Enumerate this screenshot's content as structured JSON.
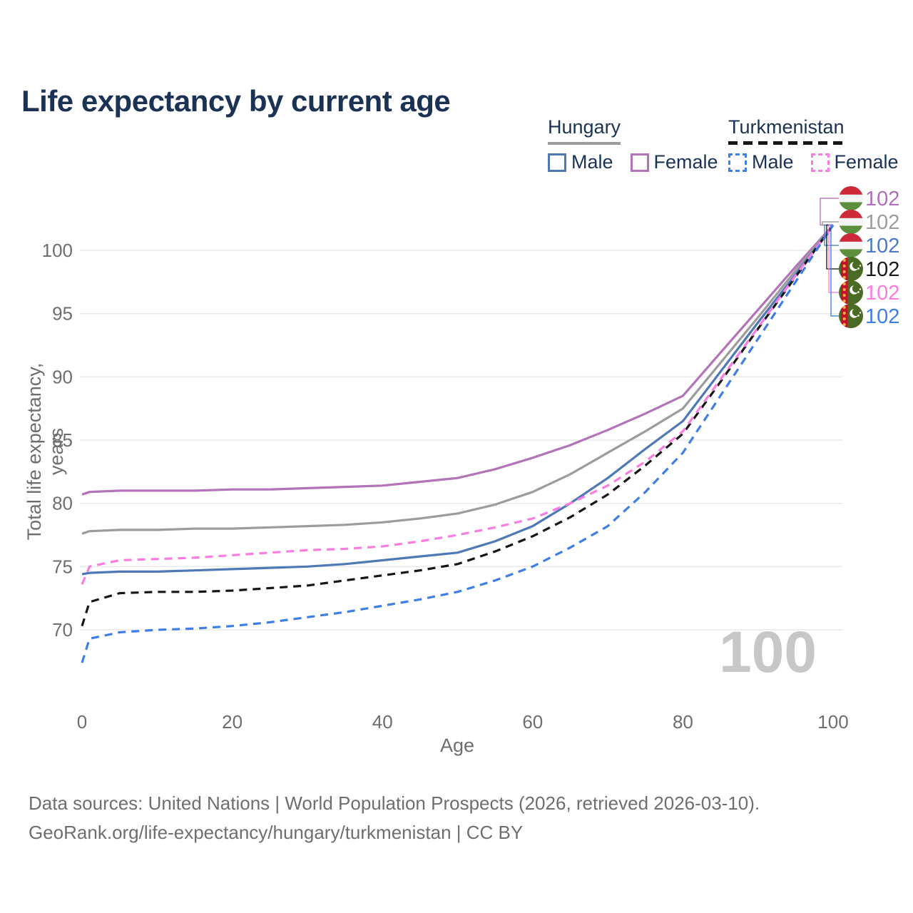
{
  "title": "Life expectancy by current age",
  "watermark": "100",
  "legend": {
    "hungary": {
      "label": "Hungary",
      "male": "Male",
      "female": "Female"
    },
    "turkmenistan": {
      "label": "Turkmenistan",
      "male": "Male",
      "female": "Female"
    }
  },
  "footer": {
    "line1": "Data sources: United Nations | World Population Prospects (2026, retrieved 2026-03-10).",
    "line2": "GeoRank.org/life-expectancy/hungary/turkmenistan | CC BY"
  },
  "colors": {
    "title_text": "#1b3254",
    "grid": "#e9e9e9",
    "tick_text": "#6e6e6e",
    "watermark": "#c7c7c7",
    "hungary_female": "#b273b8",
    "hungary_all": "#9c9c9c",
    "hungary_male": "#4e79b6",
    "turkmenistan_all": "#161616",
    "turkmenistan_female": "#fb7ce0",
    "turkmenistan_male": "#3e7ee8"
  },
  "chart_data": {
    "type": "line",
    "title": "Life expectancy by current age",
    "xlabel": "Age",
    "ylabel": "Total life expectancy, years",
    "xlim": [
      0,
      100
    ],
    "ylim": [
      70,
      100
    ],
    "x_ticks": [
      0,
      20,
      40,
      60,
      80,
      100
    ],
    "y_ticks": [
      70,
      75,
      80,
      85,
      90,
      95,
      100
    ],
    "grid": "horizontal",
    "legend_position": "top-right",
    "current_age_indicator": 100,
    "ages": [
      0,
      1,
      5,
      10,
      15,
      20,
      25,
      30,
      35,
      40,
      45,
      50,
      55,
      60,
      65,
      70,
      75,
      80,
      85,
      90,
      95,
      100
    ],
    "series": [
      {
        "id": "hungary-female",
        "name": "Hungary Female",
        "country": "Hungary",
        "sex": "Female",
        "style": "solid",
        "color": "#b273b8",
        "values": [
          80.7,
          80.9,
          81.0,
          81.0,
          81.0,
          81.1,
          81.1,
          81.2,
          81.3,
          81.4,
          81.7,
          82.0,
          82.7,
          83.6,
          84.6,
          85.8,
          87.1,
          88.5,
          91.9,
          95.3,
          98.7,
          102
        ]
      },
      {
        "id": "hungary-all",
        "name": "Hungary All",
        "country": "Hungary",
        "sex": "All",
        "style": "solid",
        "color": "#9c9c9c",
        "values": [
          77.6,
          77.8,
          77.9,
          77.9,
          78.0,
          78.0,
          78.1,
          78.2,
          78.3,
          78.5,
          78.8,
          79.2,
          79.9,
          80.9,
          82.3,
          84.0,
          85.7,
          87.5,
          91.1,
          94.7,
          98.4,
          102
        ]
      },
      {
        "id": "hungary-male",
        "name": "Hungary Male",
        "country": "Hungary",
        "sex": "Male",
        "style": "solid",
        "color": "#4e79b6",
        "values": [
          74.4,
          74.5,
          74.6,
          74.6,
          74.7,
          74.8,
          74.9,
          75.0,
          75.2,
          75.5,
          75.8,
          76.1,
          77.0,
          78.2,
          80.0,
          82.0,
          84.3,
          86.5,
          90.4,
          94.3,
          98.1,
          102
        ]
      },
      {
        "id": "turkmenistan-all",
        "name": "Turkmenistan All",
        "country": "Turkmenistan",
        "sex": "All",
        "style": "dashed",
        "color": "#161616",
        "values": [
          70.3,
          72.2,
          72.9,
          73.0,
          73.0,
          73.1,
          73.3,
          73.5,
          73.9,
          74.3,
          74.7,
          75.2,
          76.2,
          77.4,
          78.9,
          80.7,
          83.0,
          85.5,
          89.6,
          93.8,
          97.9,
          102
        ]
      },
      {
        "id": "turkmenistan-female",
        "name": "Turkmenistan Female",
        "country": "Turkmenistan",
        "sex": "Female",
        "style": "dashed",
        "color": "#fb7ce0",
        "values": [
          73.6,
          75.0,
          75.5,
          75.6,
          75.7,
          75.9,
          76.1,
          76.3,
          76.4,
          76.6,
          77.0,
          77.5,
          78.1,
          78.8,
          80.0,
          81.4,
          83.3,
          85.7,
          89.8,
          93.9,
          98.0,
          102
        ]
      },
      {
        "id": "turkmenistan-male",
        "name": "Turkmenistan Male",
        "country": "Turkmenistan",
        "sex": "Male",
        "style": "dashed",
        "color": "#3e7ee8",
        "values": [
          67.4,
          69.3,
          69.8,
          70.0,
          70.1,
          70.3,
          70.6,
          71.0,
          71.4,
          71.9,
          72.4,
          73.0,
          73.9,
          75.0,
          76.5,
          78.2,
          80.9,
          84.0,
          88.5,
          93.0,
          97.5,
          102
        ]
      }
    ],
    "end_labels": [
      {
        "series": "hungary-female",
        "flag": "hungary",
        "value": "102",
        "color": "#b06fb8"
      },
      {
        "series": "hungary-all",
        "flag": "hungary",
        "value": "102",
        "color": "#9c9c9c"
      },
      {
        "series": "hungary-male",
        "flag": "hungary",
        "value": "102",
        "color": "#4d7ac5"
      },
      {
        "series": "turkmenistan-all",
        "flag": "turkmenistan",
        "value": "102",
        "color": "#1a1a1a"
      },
      {
        "series": "turkmenistan-female",
        "flag": "turkmenistan",
        "value": "102",
        "color": "#fb7ce0"
      },
      {
        "series": "turkmenistan-male",
        "flag": "turkmenistan",
        "value": "102",
        "color": "#3e7ee8"
      }
    ]
  }
}
